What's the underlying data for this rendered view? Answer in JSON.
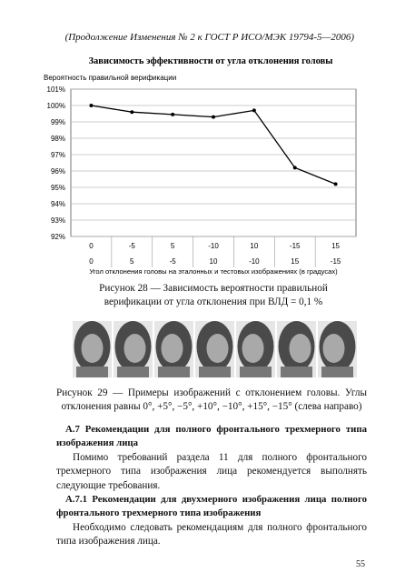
{
  "header": "(Продолжение Изменения № 2 к ГОСТ Р ИСО/МЭК 19794-5—2006)",
  "chart_data": {
    "type": "line",
    "title": "Зависимость эффективности от угла отклонения головы",
    "y_label": "Вероятность правильной верификации",
    "x_label": "Угол отклонения головы на эталонных и тестовых изображениях (в градусах)",
    "categories": [
      [
        "0",
        "0"
      ],
      [
        "-5",
        "5"
      ],
      [
        "5",
        "-5"
      ],
      [
        "-10",
        "10"
      ],
      [
        "10",
        "-10"
      ],
      [
        "-15",
        "15"
      ],
      [
        "15",
        "-15"
      ]
    ],
    "values": [
      100,
      99.6,
      99.45,
      99.3,
      99.7,
      96.2,
      95.2
    ],
    "color": "#000000",
    "ylim": [
      92,
      101
    ],
    "yticks": [
      {
        "value": 92,
        "label": "92%"
      },
      {
        "value": 93,
        "label": "93%"
      },
      {
        "value": 94,
        "label": "94%"
      },
      {
        "value": 95,
        "label": "95%"
      },
      {
        "value": 96,
        "label": "96%"
      },
      {
        "value": 97,
        "label": "97%"
      },
      {
        "value": 98,
        "label": "98%"
      },
      {
        "value": 99,
        "label": "99%"
      },
      {
        "value": 100,
        "label": "100%"
      },
      {
        "value": 101,
        "label": "101%"
      }
    ],
    "grid": true
  },
  "figure28_caption": "Рисунок 28 — Зависимость вероятности правильной верификации от угла отклонения при ВЛД = 0,1 %",
  "figure29_caption": "Рисунок 29 — Примеры изображений с отклонением головы. Углы отклонения равны 0°, +5°, −5°, +10°, −10°, +15°, −15° (слева направо)",
  "sections": [
    {
      "heading": "А.7 Рекомендации для полного фронтального трехмерного типа изображения лица",
      "paragraph": "Помимо требований раздела 11 для полного фронтального трехмерного типа изображения лица рекомендуется выполнять следующие требования."
    },
    {
      "heading": "А.7.1 Рекомендации для двухмерного изображения лица полного фронтального трехмерного типа изображения",
      "paragraph": "Необходимо следовать рекомендациям для полного фронтального типа изображения лица."
    }
  ],
  "page_number": "55"
}
